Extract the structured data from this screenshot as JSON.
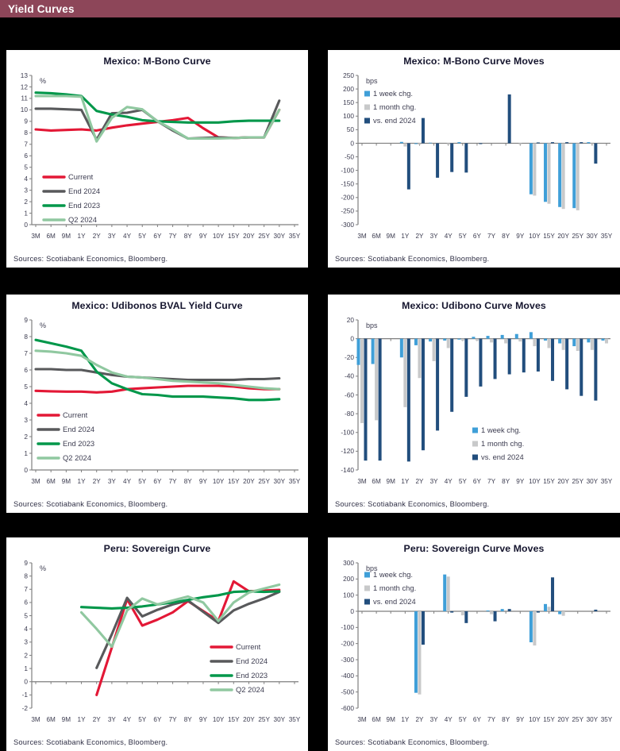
{
  "header": {
    "title": "Yield Curves"
  },
  "palette": {
    "header_bg": "#8d4659",
    "header_fg": "#ffffff",
    "page_bg": "#000000",
    "panel_bg": "#ffffff",
    "axis": "#7f7f7f",
    "tick_text": "#3c3c50",
    "title_text": "#15152e",
    "source_text": "#2f2f45",
    "red": "#e31836",
    "dark_gray": "#58595b",
    "green": "#00974a",
    "light_green": "#90c8a0",
    "light_blue": "#3f9fd8",
    "bar_gray": "#c8c9ca",
    "navy": "#224e7d"
  },
  "chart_data": [
    {
      "type": "line",
      "title": "Mexico: M-Bono Curve",
      "unit": "%",
      "ylim": [
        0,
        13
      ],
      "ytick_step": 1,
      "grid": false,
      "legend": {
        "pos": [
          45,
          136
        ],
        "row_gap": 18,
        "position": "bottom-left"
      },
      "categories": [
        "3M",
        "6M",
        "9M",
        "1Y",
        "2Y",
        "3Y",
        "4Y",
        "5Y",
        "6Y",
        "7Y",
        "8Y",
        "9Y",
        "10Y",
        "15Y",
        "20Y",
        "25Y",
        "30Y",
        "35Y"
      ],
      "series": [
        {
          "name": "Current",
          "color": "red",
          "values": [
            8.3,
            8.2,
            8.25,
            8.3,
            8.2,
            8.45,
            8.65,
            8.8,
            8.95,
            9.1,
            9.3,
            8.4,
            7.6,
            7.55,
            7.6,
            7.6,
            10.0,
            null
          ]
        },
        {
          "name": "End 2024",
          "color": "dark_gray",
          "values": [
            10.1,
            10.1,
            10.05,
            10.0,
            7.4,
            9.7,
            9.75,
            10.0,
            9.0,
            8.2,
            7.5,
            7.55,
            7.6,
            7.55,
            7.6,
            7.6,
            10.8,
            null
          ]
        },
        {
          "name": "End 2023",
          "color": "green",
          "values": [
            11.5,
            11.45,
            11.35,
            11.2,
            9.9,
            9.6,
            9.4,
            9.1,
            9.0,
            8.95,
            8.9,
            8.9,
            8.9,
            9.0,
            9.05,
            9.05,
            9.05,
            null
          ]
        },
        {
          "name": "Q2 2024",
          "color": "light_green",
          "values": [
            11.2,
            11.2,
            11.2,
            11.15,
            7.25,
            9.3,
            10.25,
            10.05,
            9.0,
            8.3,
            7.5,
            7.5,
            7.5,
            7.55,
            7.6,
            7.6,
            10.0,
            null
          ]
        }
      ],
      "source": "Sources: Scotiabank Economics, Bloomberg."
    },
    {
      "type": "bar",
      "title": "Mexico: M-Bono Curve Moves",
      "unit": "bps",
      "ylim": [
        -300,
        250
      ],
      "ytick_step": 50,
      "grid": false,
      "legend": {
        "pos": [
          44,
          34
        ],
        "row_gap": 17,
        "position": "top-left"
      },
      "categories": [
        "3M",
        "6M",
        "9M",
        "1Y",
        "2Y",
        "3Y",
        "4Y",
        "5Y",
        "6Y",
        "7Y",
        "8Y",
        "9Y",
        "10Y",
        "15Y",
        "20Y",
        "25Y",
        "30Y",
        "35Y"
      ],
      "series": [
        {
          "name": "1 week chg.",
          "color": "light_blue",
          "values": [
            0,
            0,
            0,
            5,
            -3,
            2,
            0,
            4,
            0,
            0,
            0,
            0,
            -188,
            -216,
            -235,
            -239,
            4,
            0
          ]
        },
        {
          "name": "1 month chg.",
          "color": "bar_gray",
          "values": [
            0,
            0,
            0,
            -12,
            -5,
            0,
            -5,
            0,
            0,
            0,
            0,
            -4,
            -193,
            -223,
            -242,
            -247,
            2,
            0
          ]
        },
        {
          "name": "vs. end 2024",
          "color": "navy",
          "values": [
            0,
            0,
            0,
            -170,
            93,
            -127,
            -106,
            -108,
            -3,
            0,
            180,
            0,
            3,
            4,
            4,
            4,
            -75,
            0
          ]
        }
      ],
      "source": "Sources: Scotiabank Economics, Bloomberg."
    },
    {
      "type": "line",
      "title": "Mexico: Udibonos BVAL Yield Curve",
      "unit": "%",
      "ylim": [
        0,
        9
      ],
      "ytick_step": 1,
      "grid": false,
      "legend": {
        "pos": [
          38,
          128
        ],
        "row_gap": 18,
        "position": "bottom-left"
      },
      "categories": [
        "3M",
        "6M",
        "9M",
        "1Y",
        "2Y",
        "3Y",
        "4Y",
        "5Y",
        "6Y",
        "7Y",
        "8Y",
        "9Y",
        "10Y",
        "15Y",
        "20Y",
        "25Y",
        "30Y",
        "35Y"
      ],
      "series": [
        {
          "name": "Current",
          "color": "red",
          "values": [
            4.75,
            4.72,
            4.7,
            4.7,
            4.65,
            4.7,
            4.85,
            4.9,
            4.95,
            5.0,
            5.05,
            5.05,
            5.05,
            5.0,
            4.9,
            4.85,
            4.85,
            null
          ]
        },
        {
          "name": "End 2024",
          "color": "dark_gray",
          "values": [
            6.05,
            6.05,
            6.0,
            6.0,
            5.85,
            5.7,
            5.6,
            5.55,
            5.5,
            5.45,
            5.4,
            5.4,
            5.4,
            5.4,
            5.45,
            5.45,
            5.5,
            null
          ]
        },
        {
          "name": "End 2023",
          "color": "green",
          "values": [
            7.8,
            7.6,
            7.4,
            7.15,
            5.9,
            5.2,
            4.85,
            4.55,
            4.5,
            4.4,
            4.4,
            4.4,
            4.35,
            4.3,
            4.2,
            4.2,
            4.25,
            null
          ]
        },
        {
          "name": "Q2 2024",
          "color": "light_green",
          "values": [
            7.15,
            7.1,
            7.0,
            6.85,
            6.3,
            5.85,
            5.6,
            5.55,
            5.45,
            5.35,
            5.3,
            5.25,
            5.2,
            5.1,
            5.0,
            4.9,
            4.85,
            null
          ]
        }
      ],
      "source": "Sources: Scotiabank Economics, Bloomberg."
    },
    {
      "type": "bar",
      "title": "Mexico: Udibono Curve Moves",
      "unit": "bps",
      "ylim": [
        -140,
        20
      ],
      "ytick_step": 20,
      "grid": false,
      "legend": {
        "pos": [
          180,
          150
        ],
        "row_gap": 17,
        "position": "middle-right"
      },
      "categories": [
        "3M",
        "6M",
        "9M",
        "1Y",
        "2Y",
        "3Y",
        "4Y",
        "5Y",
        "6Y",
        "7Y",
        "8Y",
        "9Y",
        "10Y",
        "15Y",
        "20Y",
        "25Y",
        "30Y",
        "35Y"
      ],
      "series": [
        {
          "name": "1 week chg.",
          "color": "light_blue",
          "values": [
            -28,
            -27,
            0,
            -20,
            -7,
            -3,
            -2,
            -1,
            2,
            3,
            4,
            5,
            7,
            -2,
            -5,
            -8,
            -4,
            -2
          ]
        },
        {
          "name": "1 month chg.",
          "color": "bar_gray",
          "values": [
            -90,
            -87,
            0,
            -73,
            -42,
            -24,
            -10,
            -2,
            -2,
            -4,
            -5,
            -3,
            -8,
            -10,
            -12,
            -13,
            -12,
            -5
          ]
        },
        {
          "name": "vs. end 2024",
          "color": "navy",
          "values": [
            -130,
            -130,
            0,
            -131,
            -119,
            -98,
            -78,
            -62,
            -51,
            -43,
            -38,
            -36,
            -35,
            -45,
            -54,
            -61,
            -66,
            0
          ]
        }
      ],
      "source": "Sources: Scotiabank Economics, Bloomberg."
    },
    {
      "type": "line",
      "title": "Peru: Sovereign Curve",
      "unit": "%",
      "ylim": [
        -2,
        9
      ],
      "ytick_step": 1,
      "grid": false,
      "legend": {
        "pos": [
          256,
          114
        ],
        "row_gap": 18,
        "position": "middle-right"
      },
      "categories": [
        "3M",
        "6M",
        "9M",
        "1Y",
        "2Y",
        "3Y",
        "4Y",
        "5Y",
        "6Y",
        "7Y",
        "8Y",
        "9Y",
        "10Y",
        "15Y",
        "20Y",
        "25Y",
        "30Y",
        "35Y"
      ],
      "series": [
        {
          "name": "Current",
          "color": "red",
          "values": [
            null,
            null,
            null,
            null,
            -1.0,
            2.6,
            6.25,
            4.25,
            4.7,
            5.25,
            6.1,
            5.35,
            4.6,
            7.6,
            6.85,
            6.9,
            6.95,
            null
          ]
        },
        {
          "name": "End 2024",
          "color": "dark_gray",
          "values": [
            null,
            null,
            null,
            null,
            1.05,
            3.6,
            6.35,
            4.95,
            5.45,
            5.85,
            6.15,
            5.3,
            4.45,
            5.4,
            5.9,
            6.3,
            6.8,
            null
          ]
        },
        {
          "name": "End 2023",
          "color": "green",
          "values": [
            null,
            null,
            null,
            5.65,
            5.6,
            5.55,
            5.6,
            5.7,
            5.85,
            6.0,
            6.2,
            6.4,
            6.55,
            6.8,
            6.85,
            6.8,
            6.85,
            null
          ]
        },
        {
          "name": "Q2 2024",
          "color": "light_green",
          "values": [
            null,
            null,
            null,
            5.25,
            4.0,
            2.65,
            5.4,
            6.3,
            5.85,
            6.15,
            6.45,
            6.0,
            4.6,
            6.0,
            6.75,
            7.05,
            7.35,
            null
          ]
        }
      ],
      "source": "Sources: Scotiabank Economics, Bloomberg."
    },
    {
      "type": "bar",
      "title": "Peru: Sovereign Curve Moves",
      "unit": "bps",
      "ylim": [
        -600,
        300
      ],
      "ytick_step": 100,
      "grid": false,
      "legend": {
        "pos": [
          44,
          26
        ],
        "row_gap": 17,
        "position": "top-left"
      },
      "categories": [
        "3M",
        "6M",
        "9M",
        "1Y",
        "2Y",
        "3Y",
        "4Y",
        "5Y",
        "6Y",
        "7Y",
        "8Y",
        "9Y",
        "10Y",
        "15Y",
        "20Y",
        "25Y",
        "30Y",
        "35Y"
      ],
      "series": [
        {
          "name": "1 week chg.",
          "color": "light_blue",
          "values": [
            0,
            0,
            0,
            0,
            -505,
            0,
            228,
            0,
            0,
            5,
            14,
            0,
            -192,
            45,
            -18,
            0,
            0,
            0
          ]
        },
        {
          "name": "1 month chg.",
          "color": "bar_gray",
          "values": [
            0,
            0,
            0,
            0,
            -515,
            0,
            215,
            -25,
            0,
            -18,
            0,
            0,
            -212,
            28,
            -28,
            0,
            0,
            0
          ]
        },
        {
          "name": "vs. end 2024",
          "color": "navy",
          "values": [
            0,
            0,
            0,
            0,
            -207,
            0,
            -8,
            -73,
            0,
            -62,
            14,
            0,
            -8,
            210,
            0,
            0,
            10,
            0
          ]
        }
      ],
      "source": "Sources: Scotiabank Economics, Bloomberg."
    }
  ]
}
